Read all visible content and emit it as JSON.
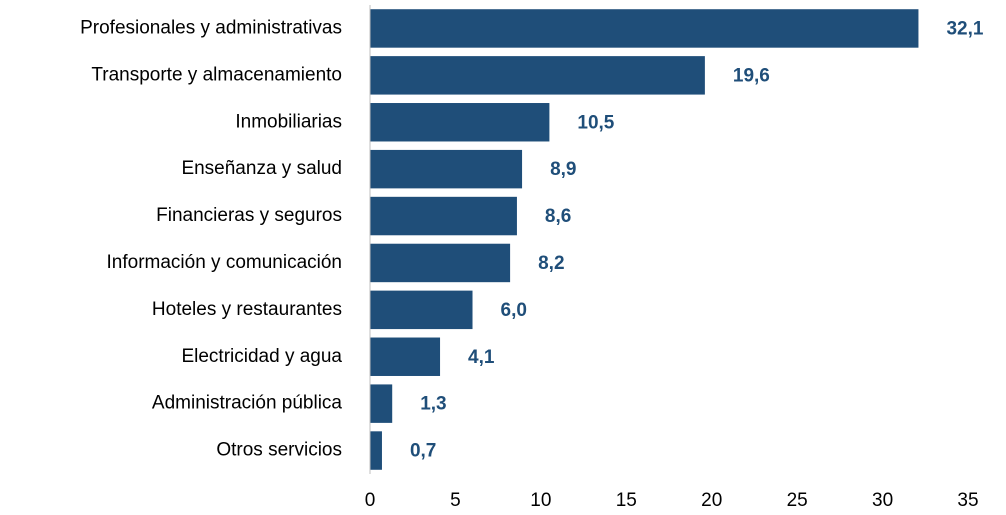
{
  "chart_data": {
    "type": "bar",
    "orientation": "horizontal",
    "categories": [
      "Profesionales y administrativas",
      "Transporte y almacenamiento",
      "Inmobiliarias",
      "Enseñanza y salud",
      "Financieras y seguros",
      "Información y comunicación",
      "Hoteles y restaurantes",
      "Electricidad y agua",
      "Administración pública",
      "Otros servicios"
    ],
    "values": [
      32.1,
      19.6,
      10.5,
      8.9,
      8.6,
      8.2,
      6.0,
      4.1,
      1.3,
      0.7
    ],
    "value_labels": [
      "32,1",
      "19,6",
      "10,5",
      "8,9",
      "8,6",
      "8,2",
      "6,0",
      "4,1",
      "1,3",
      "0,7"
    ],
    "color": "#1f4e79",
    "xlim": [
      0,
      35
    ],
    "xticks": [
      0,
      5,
      10,
      15,
      20,
      25,
      30,
      35
    ],
    "grid": false
  }
}
